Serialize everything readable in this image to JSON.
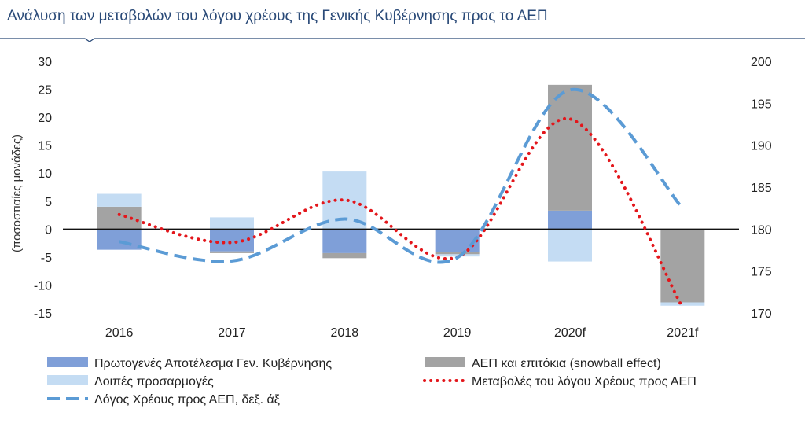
{
  "title": "Ανάλυση των μεταβολών του λόγου χρέους της Γενικής Κυβέρνησης προς το ΑΕΠ",
  "chart_data": {
    "type": "bar",
    "stacked": true,
    "categories": [
      "2016",
      "2017",
      "2018",
      "2019",
      "2020f",
      "2021f"
    ],
    "ylabel": "(ποσοστιαίες μονάδες)",
    "ylim": [
      -15,
      30
    ],
    "yticks": [
      "-15",
      "-10",
      "-5",
      "0",
      "5",
      "10",
      "15",
      "20",
      "25",
      "30"
    ],
    "y2lim": [
      170,
      200
    ],
    "y2ticks": [
      "170",
      "175",
      "180",
      "185",
      "190",
      "195",
      "200"
    ],
    "series": [
      {
        "name": "Πρωτογενές Αποτέλεσμα Γεν. Κυβέρνησης",
        "kind": "bar",
        "color": "#7f9fd8",
        "values": [
          -3.7,
          -4.0,
          -4.3,
          -4.1,
          3.3,
          -0.2
        ]
      },
      {
        "name": "ΑΕΠ και επιτόκια (snowball effect)",
        "kind": "bar",
        "color": "#a3a3a3",
        "values": [
          4.0,
          -0.3,
          -0.9,
          -0.4,
          22.5,
          -12.9
        ]
      },
      {
        "name": "Λοιπές προσαρμογές",
        "kind": "bar",
        "color": "#c4dcf3",
        "values": [
          2.3,
          2.1,
          10.3,
          -0.4,
          -5.8,
          -0.6
        ]
      },
      {
        "name": "Μεταβολές του λόγου Χρέους προς ΑΕΠ",
        "kind": "line",
        "axis": "left",
        "color": "#e3161b",
        "style": "dotted",
        "values": [
          2.6,
          -2.4,
          5.2,
          -5.0,
          19.7,
          -14.0
        ]
      },
      {
        "name": "Λόγος Χρέους προς ΑΕΠ, δεξ. άξ",
        "kind": "line",
        "axis": "right",
        "color": "#5b9bd5",
        "style": "dashed",
        "values": [
          178.5,
          176.2,
          181.2,
          176.6,
          196.6,
          182.5
        ]
      }
    ],
    "legend_order": [
      0,
      1,
      2,
      3,
      4
    ],
    "legend_position": "bottom",
    "grid": false
  }
}
